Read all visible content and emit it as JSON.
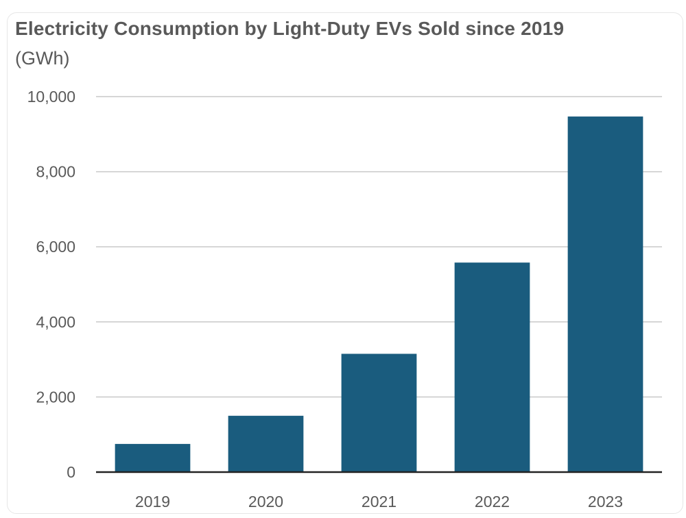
{
  "chart_data": {
    "type": "bar",
    "title": "Electricity Consumption by Light-Duty EVs Sold since 2019",
    "ylabel": "(GWh)",
    "xlabel": "",
    "categories": [
      "2019",
      "2020",
      "2021",
      "2022",
      "2023"
    ],
    "values": [
      750,
      1500,
      3150,
      5580,
      9470
    ],
    "ylim": [
      0,
      10000
    ],
    "yticks": [
      0,
      2000,
      4000,
      6000,
      8000,
      10000
    ],
    "ytick_labels": [
      "0",
      "2,000",
      "4,000",
      "6,000",
      "8,000",
      "10,000"
    ],
    "grid": true,
    "legend": "none",
    "bar_color": "#1a5c7e"
  }
}
